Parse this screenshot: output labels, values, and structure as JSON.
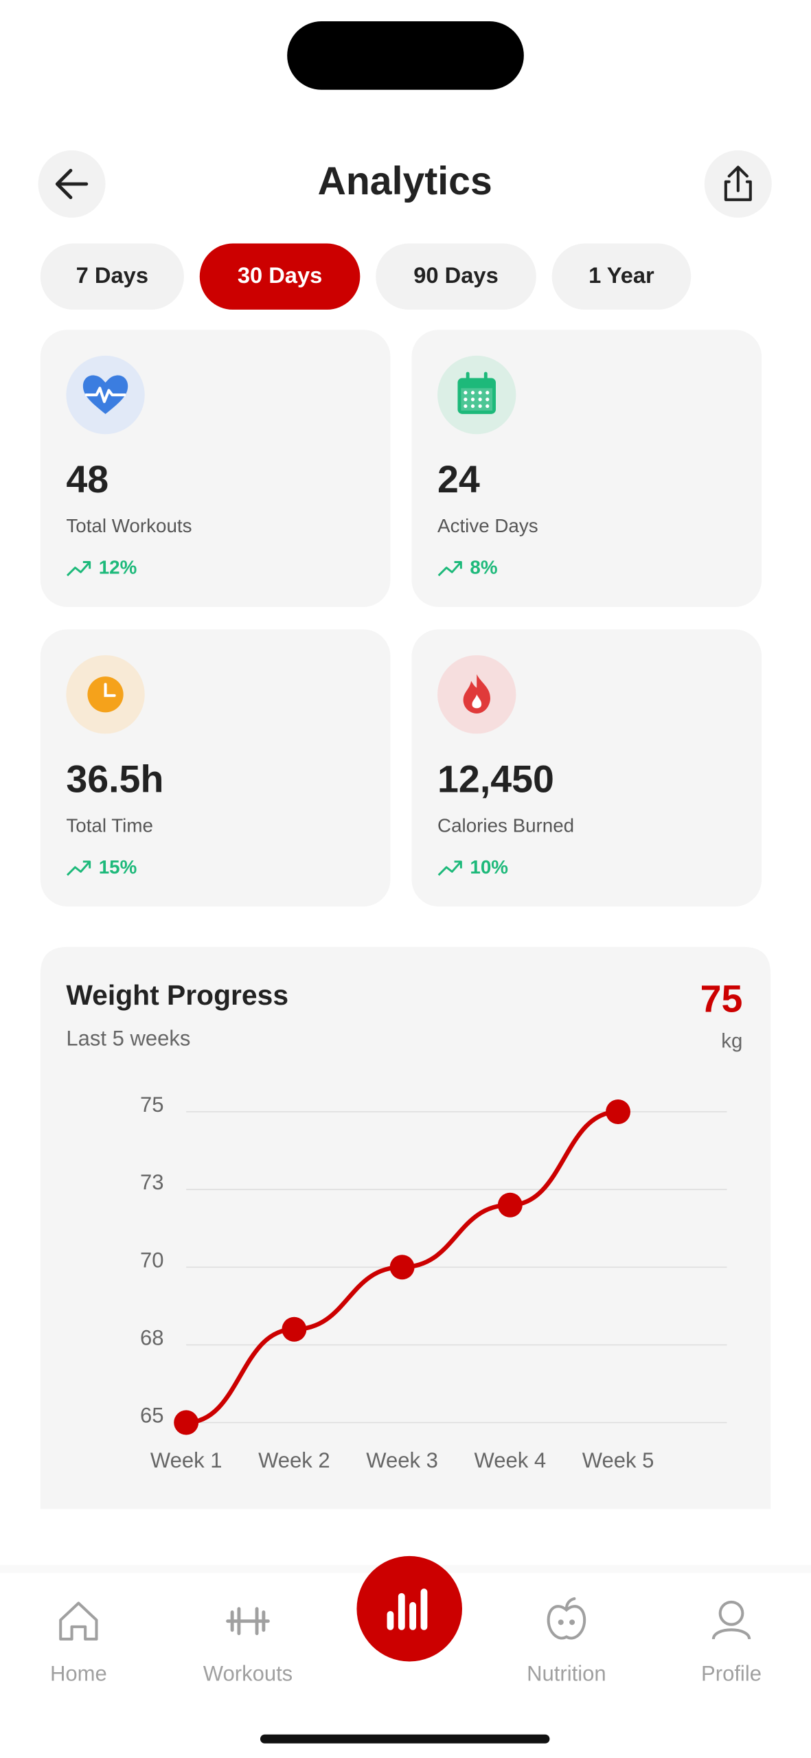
{
  "header": {
    "title": "Analytics"
  },
  "periods": {
    "options": [
      "7 Days",
      "30 Days",
      "90 Days",
      "1 Year"
    ],
    "active": 1
  },
  "stats": [
    {
      "value": "48",
      "label": "Total Workouts",
      "change": "12%"
    },
    {
      "value": "24",
      "label": "Active Days",
      "change": "8%"
    },
    {
      "value": "36.5h",
      "label": "Total Time",
      "change": "15%"
    },
    {
      "value": "12,450",
      "label": "Calories Burned",
      "change": "10%"
    }
  ],
  "weight": {
    "current": "75",
    "unit": "kg"
  },
  "chart_data": {
    "type": "line",
    "title": "Weight Progress",
    "subtitle": "Last 5 weeks",
    "categories": [
      "Week 1",
      "Week 2",
      "Week 3",
      "Week 4",
      "Week 5"
    ],
    "series": [
      {
        "name": "Weight",
        "color": "#cc0000",
        "values": [
          65,
          68,
          70,
          72,
          75
        ]
      }
    ],
    "ylim": [
      65,
      75
    ],
    "yticks": [
      65,
      {
        "value": 67.5,
        "label": "68"
      },
      70,
      {
        "value": 72.5,
        "label": "73"
      },
      75
    ],
    "grid": true
  },
  "nav": {
    "items": [
      "Home",
      "Workouts",
      "Nutrition",
      "Profile"
    ]
  }
}
